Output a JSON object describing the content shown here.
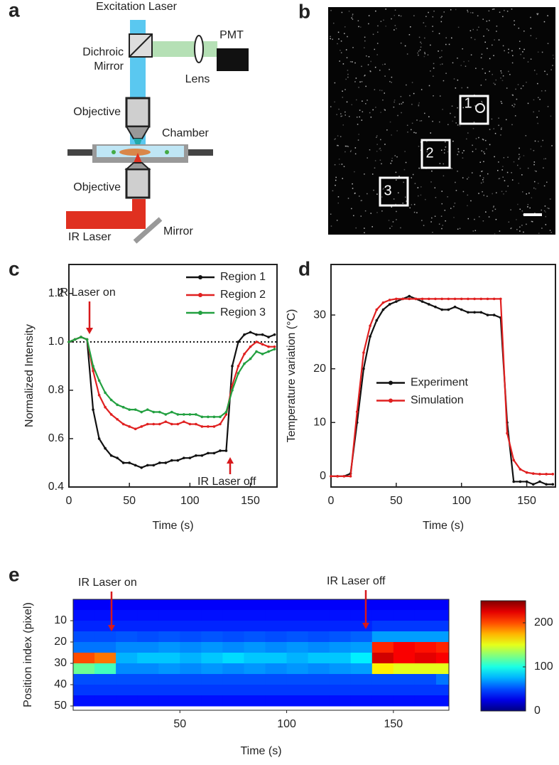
{
  "diagram": {
    "label": "a",
    "excitation": "Excitation Laser",
    "pmt": "PMT",
    "dichroic": "Dichroic Mirror",
    "lens": "Lens",
    "objective_top": "Objective",
    "chamber": "Chamber",
    "objective_bottom": "Objective",
    "ir_laser": "IR Laser",
    "mirror": "Mirror"
  },
  "image": {
    "label": "b",
    "regions": [
      "1",
      "2",
      "3"
    ]
  },
  "chart_data": [
    {
      "label": "c",
      "type": "line",
      "x": [
        0,
        5,
        10,
        15,
        20,
        25,
        30,
        35,
        40,
        45,
        50,
        55,
        60,
        65,
        70,
        75,
        80,
        85,
        90,
        95,
        100,
        105,
        110,
        115,
        120,
        125,
        130,
        135,
        140,
        145,
        150,
        155,
        160,
        165,
        170
      ],
      "series": [
        {
          "name": "Region 1",
          "color": "#111111",
          "values": [
            1.0,
            1.01,
            1.02,
            1.01,
            0.72,
            0.6,
            0.56,
            0.53,
            0.52,
            0.5,
            0.5,
            0.49,
            0.48,
            0.49,
            0.49,
            0.5,
            0.5,
            0.51,
            0.51,
            0.52,
            0.52,
            0.53,
            0.53,
            0.54,
            0.54,
            0.55,
            0.55,
            0.9,
            1.0,
            1.03,
            1.04,
            1.03,
            1.03,
            1.02,
            1.03
          ]
        },
        {
          "name": "Region 2",
          "color": "#e02020",
          "values": [
            1.0,
            1.01,
            1.02,
            1.01,
            0.88,
            0.78,
            0.73,
            0.7,
            0.68,
            0.66,
            0.65,
            0.64,
            0.65,
            0.66,
            0.66,
            0.66,
            0.67,
            0.66,
            0.66,
            0.67,
            0.66,
            0.66,
            0.65,
            0.65,
            0.65,
            0.66,
            0.7,
            0.82,
            0.9,
            0.95,
            0.98,
            1.0,
            0.99,
            0.98,
            0.98
          ]
        },
        {
          "name": "Region 3",
          "color": "#22a040",
          "values": [
            1.0,
            1.01,
            1.02,
            1.01,
            0.9,
            0.84,
            0.79,
            0.76,
            0.74,
            0.73,
            0.72,
            0.72,
            0.71,
            0.72,
            0.71,
            0.71,
            0.7,
            0.71,
            0.7,
            0.7,
            0.7,
            0.7,
            0.69,
            0.69,
            0.69,
            0.69,
            0.71,
            0.8,
            0.87,
            0.91,
            0.93,
            0.96,
            0.95,
            0.96,
            0.97
          ]
        }
      ],
      "xlim": [
        0,
        172
      ],
      "ylim": [
        0.4,
        1.32
      ],
      "xticks": [
        0,
        50,
        100,
        150
      ],
      "yticks": [
        0.4,
        0.6,
        0.8,
        {
          "value": 1,
          "label": "1.0"
        },
        1.2
      ],
      "xlabel": "Time (s)",
      "ylabel": "Normalized Intensity",
      "hline": 1,
      "legend": "upper right",
      "annotations": [
        "IR Laser on",
        "IR Laser off"
      ]
    },
    {
      "label": "d",
      "type": "line",
      "x": [
        0,
        5,
        10,
        15,
        20,
        25,
        30,
        35,
        40,
        45,
        50,
        55,
        60,
        65,
        70,
        75,
        80,
        85,
        90,
        95,
        100,
        105,
        110,
        115,
        120,
        125,
        130,
        135,
        140,
        145,
        150,
        155,
        160,
        165,
        170
      ],
      "series": [
        {
          "name": "Experiment",
          "color": "#111111",
          "values": [
            0,
            0,
            0,
            0.5,
            10,
            20,
            26,
            29,
            31,
            32,
            32.5,
            33,
            33.5,
            33,
            32.5,
            32,
            31.5,
            31,
            31,
            31.5,
            31,
            30.5,
            30.5,
            30.5,
            30,
            30,
            29.5,
            10,
            -1,
            -1,
            -1,
            -1.5,
            -1,
            -1.5,
            -1.5
          ]
        },
        {
          "name": "Simulation",
          "color": "#e02020",
          "values": [
            0,
            0,
            0,
            0,
            12,
            23,
            28,
            31,
            32.3,
            32.8,
            33,
            33,
            33,
            33,
            33,
            33,
            33,
            33,
            33,
            33,
            33,
            33,
            33,
            33,
            33,
            33,
            33,
            8,
            3,
            1.3,
            0.7,
            0.5,
            0.4,
            0.4,
            0.4
          ]
        }
      ],
      "xlim": [
        0,
        172
      ],
      "ylim": [
        -2,
        39.4
      ],
      "xticks": [
        0,
        50,
        100,
        150
      ],
      "yticks": [
        0,
        10,
        20,
        30
      ],
      "xlabel": "Time (s)",
      "ylabel": "Temperature variation (°C)",
      "legend": "center"
    },
    {
      "label": "e",
      "type": "heatmap",
      "x": [
        5,
        15,
        25,
        35,
        45,
        55,
        65,
        75,
        85,
        95,
        105,
        115,
        125,
        135,
        145,
        155,
        165,
        175
      ],
      "y": [
        2.5,
        7.5,
        12.5,
        17.5,
        22.5,
        27.5,
        32.5,
        37.5,
        42.5,
        47.5
      ],
      "z": [
        [
          30,
          30,
          30,
          30,
          30,
          30,
          30,
          30,
          30,
          30,
          30,
          30,
          30,
          30,
          30,
          30,
          30,
          30
        ],
        [
          35,
          35,
          35,
          35,
          35,
          35,
          35,
          35,
          35,
          35,
          35,
          35,
          35,
          35,
          35,
          35,
          35,
          35
        ],
        [
          40,
          40,
          40,
          40,
          40,
          40,
          40,
          40,
          40,
          40,
          40,
          40,
          40,
          40,
          45,
          45,
          45,
          45
        ],
        [
          50,
          50,
          52,
          50,
          52,
          50,
          52,
          50,
          52,
          50,
          52,
          50,
          52,
          55,
          70,
          70,
          70,
          70
        ],
        [
          60,
          60,
          65,
          65,
          68,
          65,
          68,
          65,
          68,
          65,
          68,
          65,
          68,
          70,
          210,
          220,
          215,
          210
        ],
        [
          200,
          190,
          75,
          80,
          80,
          75,
          80,
          85,
          80,
          80,
          75,
          80,
          80,
          90,
          230,
          220,
          225,
          220
        ],
        [
          120,
          110,
          65,
          65,
          68,
          65,
          68,
          65,
          68,
          65,
          68,
          65,
          68,
          70,
          160,
          150,
          150,
          150
        ],
        [
          50,
          50,
          50,
          50,
          50,
          50,
          50,
          50,
          50,
          50,
          50,
          50,
          50,
          50,
          50,
          50,
          50,
          60
        ],
        [
          45,
          45,
          45,
          45,
          45,
          45,
          45,
          45,
          45,
          45,
          45,
          45,
          45,
          45,
          45,
          45,
          45,
          45
        ],
        [
          35,
          35,
          35,
          35,
          35,
          35,
          35,
          35,
          35,
          35,
          35,
          35,
          35,
          35,
          35,
          35,
          35,
          35
        ]
      ],
      "xlim": [
        0,
        176
      ],
      "ylim": [
        0,
        52
      ],
      "xticks": [
        50,
        100,
        150
      ],
      "yticks": [
        10,
        20,
        30,
        40,
        50
      ],
      "zlim": [
        0,
        250
      ],
      "zticks": [
        0,
        100,
        200
      ],
      "colormap": "jet",
      "xlabel": "Time (s)",
      "ylabel": "Position index (pixel)",
      "annotations": [
        "IR Laser on",
        "IR Laser off"
      ]
    }
  ]
}
